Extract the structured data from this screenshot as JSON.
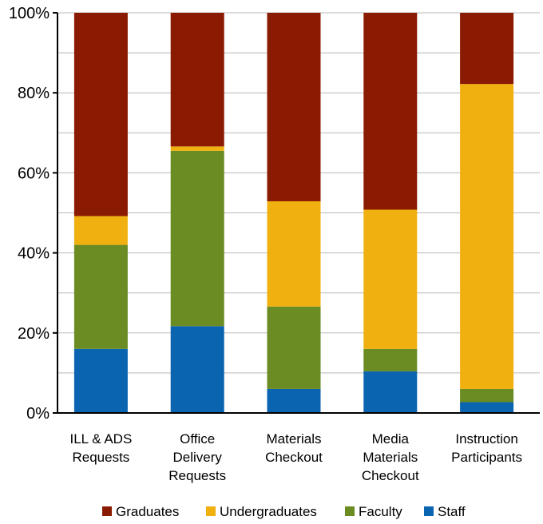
{
  "chart_data": {
    "type": "bar",
    "stacked": true,
    "orientation": "vertical",
    "percent_axis": true,
    "categories": [
      [
        "ILL & ADS",
        "Requests"
      ],
      [
        "Office",
        "Delivery",
        "Requests"
      ],
      [
        "Materials",
        "Checkout"
      ],
      [
        "Media",
        "Materials",
        "Checkout"
      ],
      [
        "Instruction",
        "Participants"
      ]
    ],
    "series": [
      {
        "name": "Staff",
        "color": "#0b64b0",
        "values": [
          16,
          21.7,
          6,
          10.4,
          2.7
        ]
      },
      {
        "name": "Faculty",
        "color": "#6a8c22",
        "values": [
          26,
          43.8,
          20.6,
          5.6,
          3.3
        ]
      },
      {
        "name": "Undergraduates",
        "color": "#f0b010",
        "values": [
          7.2,
          1.1,
          26.3,
          34.8,
          76.2
        ]
      },
      {
        "name": "Graduates",
        "color": "#8b1a02",
        "values": [
          50.8,
          33.4,
          47.1,
          49.2,
          17.8
        ]
      }
    ],
    "legend_order": [
      "Graduates",
      "Undergraduates",
      "Faculty",
      "Staff"
    ],
    "ylim": [
      0,
      100
    ],
    "yticks": [
      0,
      20,
      40,
      60,
      80,
      100
    ],
    "ytick_labels": [
      "0%",
      "20%",
      "40%",
      "60%",
      "80%",
      "100%"
    ],
    "grid": true,
    "legend_position": "bottom",
    "title": "",
    "xlabel": "",
    "ylabel": ""
  }
}
